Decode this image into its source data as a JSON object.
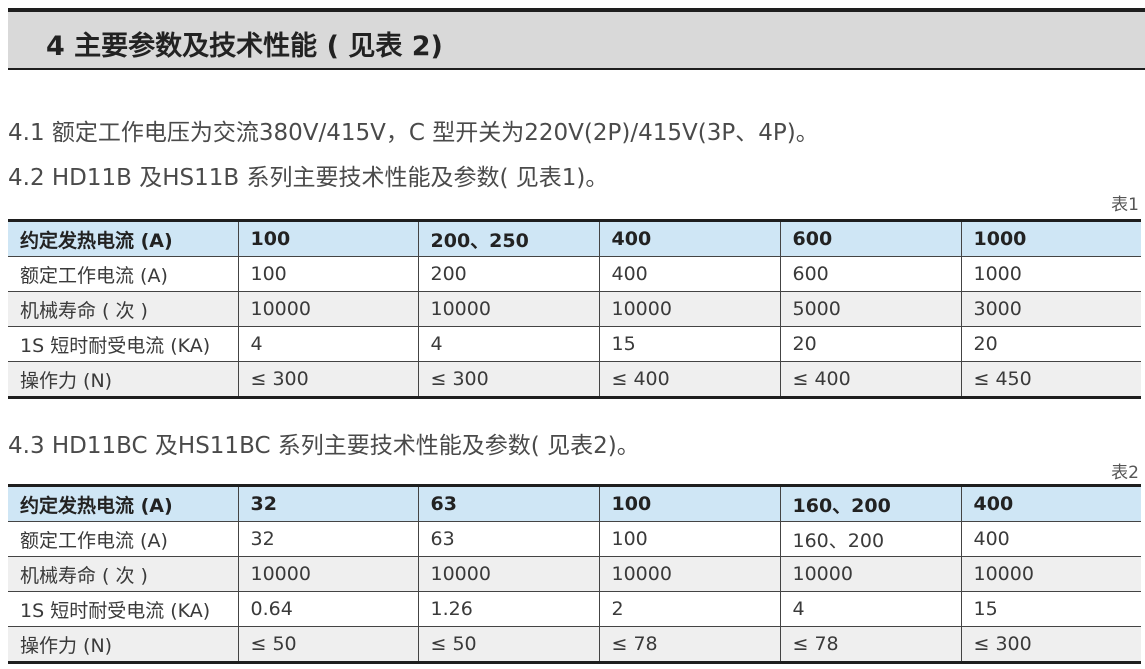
{
  "section": {
    "title": "4 主要参数及技术性能 ( 见表 2)"
  },
  "paragraphs": {
    "p41": "4.1 额定工作电压为交流380V/415V，C 型开关为220V(2P)/415V(3P、4P)。",
    "p42": "4.2 HD11B 及HS11B 系列主要技术性能及参数( 见表1)。",
    "p43": "4.3 HD11BC 及HS11BC 系列主要技术性能及参数( 见表2)。"
  },
  "table1": {
    "label": "表1",
    "rows": [
      [
        "约定发热电流 (A)",
        "100",
        "200、250",
        "400",
        "600",
        "1000"
      ],
      [
        "额定工作电流 (A)",
        "100",
        "200",
        "400",
        "600",
        "1000"
      ],
      [
        "机械寿命 ( 次 )",
        "10000",
        "10000",
        "10000",
        "5000",
        "3000"
      ],
      [
        "1S 短时耐受电流 (KA)",
        "4",
        "4",
        "15",
        "20",
        "20"
      ],
      [
        "操作力 (N)",
        "≤ 300",
        "≤ 300",
        "≤ 400",
        "≤ 400",
        "≤ 450"
      ]
    ]
  },
  "table2": {
    "label": "表2",
    "rows": [
      [
        "约定发热电流 (A)",
        "32",
        "63",
        "100",
        "160、200",
        "400"
      ],
      [
        "额定工作电流 (A)",
        "32",
        "63",
        "100",
        "160、200",
        "400"
      ],
      [
        "机械寿命 ( 次 )",
        "10000",
        "10000",
        "10000",
        "10000",
        "10000"
      ],
      [
        "1S 短时耐受电流 (KA)",
        "0.64",
        "1.26",
        "2",
        "4",
        "15"
      ],
      [
        "操作力 (N)",
        "≤ 50",
        "≤ 50",
        "≤ 78",
        "≤ 78",
        "≤ 300"
      ]
    ]
  },
  "colors": {
    "header_row": "#cfe6f5",
    "alt_row": "#efefef",
    "section_bg": "#d9d9d9"
  }
}
